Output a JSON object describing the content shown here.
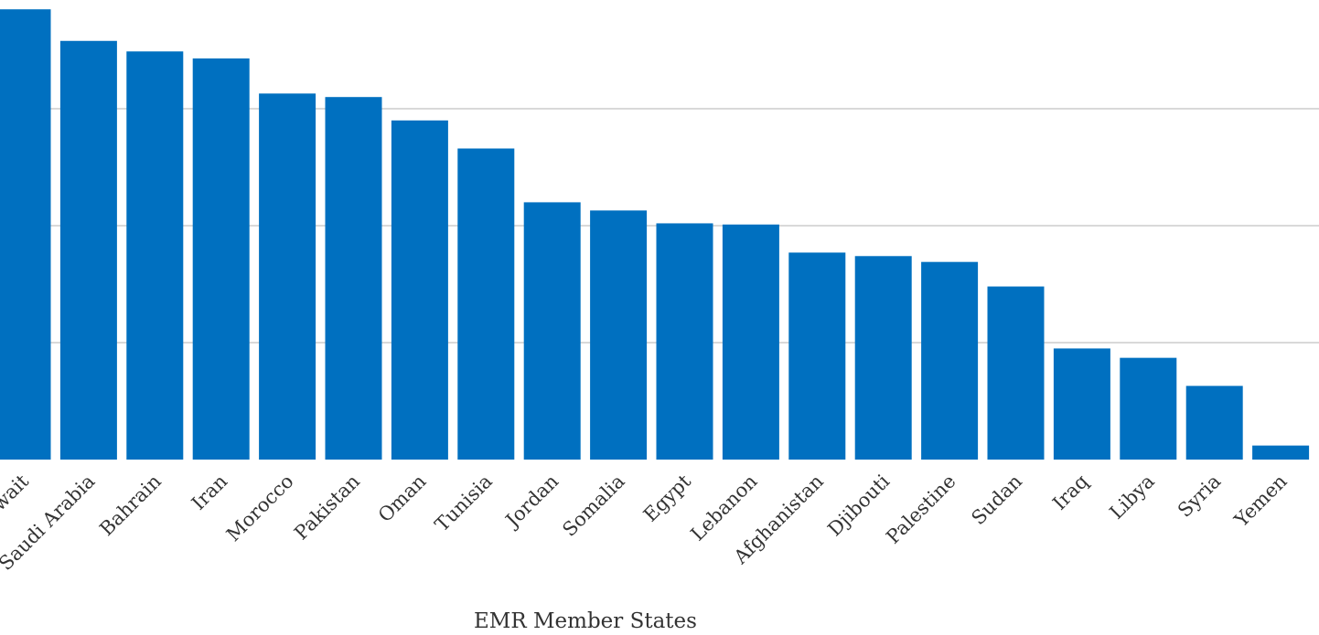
{
  "chart_data": {
    "type": "bar",
    "title": "",
    "xlabel": "EMR Member States",
    "ylabel": "",
    "categories": [
      "Kuwait",
      "Saudi Arabia",
      "Bahrain",
      "Iran",
      "Morocco",
      "Pakistan",
      "Oman",
      "Tunisia",
      "Jordan",
      "Somalia",
      "Egypt",
      "Lebanon",
      "Afghanistan",
      "Djibouti",
      "Palestine",
      "Sudan",
      "Iraq",
      "Libya",
      "Syria",
      "Yemen"
    ],
    "values": [
      3.85,
      3.58,
      3.49,
      3.43,
      3.13,
      3.1,
      2.9,
      2.66,
      2.2,
      2.13,
      2.02,
      2.01,
      1.77,
      1.74,
      1.69,
      1.48,
      0.95,
      0.87,
      0.63,
      0.12
    ],
    "ylim": [
      0,
      4
    ],
    "grid": true,
    "color": "#0070c0"
  }
}
